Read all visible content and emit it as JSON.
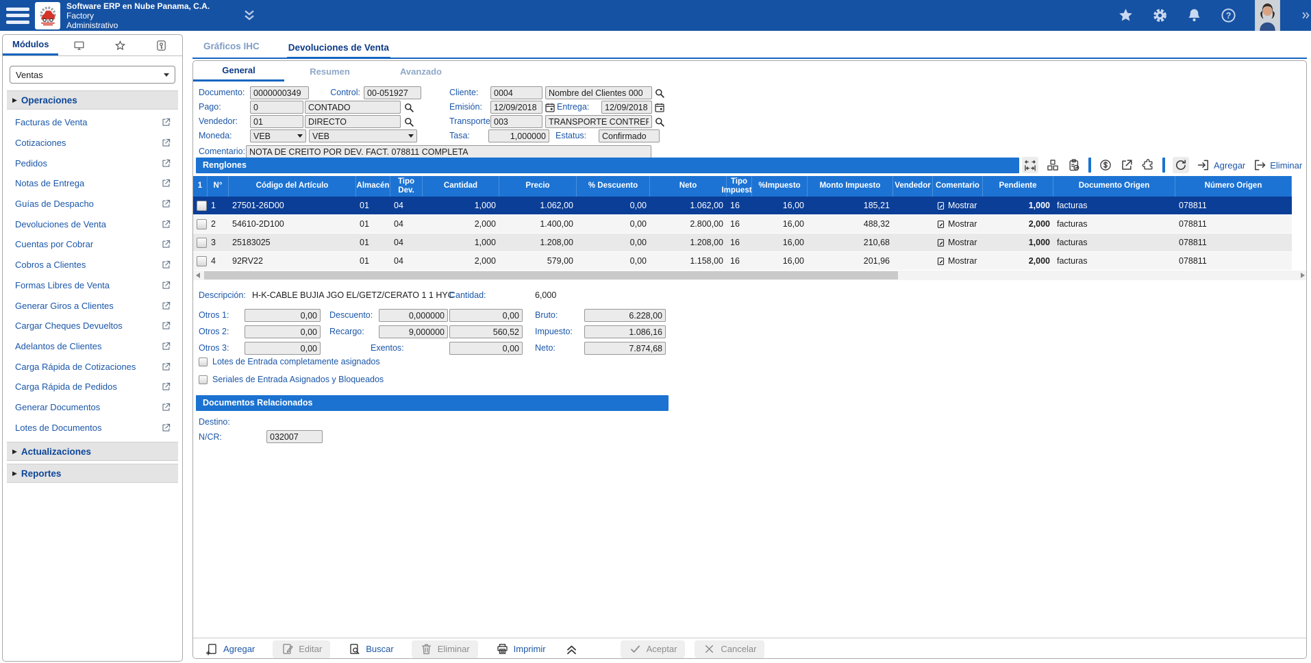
{
  "header": {
    "app_title": "Software ERP en Nube Panama, C.A.",
    "app_line2": "Factory",
    "app_line3": "Administrativo"
  },
  "sidebar": {
    "active_tab": "Módulos",
    "module_selector": "Ventas",
    "section_operaciones": "Operaciones",
    "items": [
      "Facturas de Venta",
      "Cotizaciones",
      "Pedidos",
      "Notas de Entrega",
      "Guías de Despacho",
      "Devoluciones de Venta",
      "Cuentas por Cobrar",
      "Cobros a Clientes",
      "Formas Libres de Venta",
      "Generar Giros a Clientes",
      "Cargar Cheques Devueltos",
      "Adelantos de Clientes",
      "Carga Rápida de Cotizaciones",
      "Carga Rápida de Pedidos",
      "Generar Documentos",
      "Lotes de Documentos"
    ],
    "section_actualizaciones": "Actualizaciones",
    "section_reportes": "Reportes"
  },
  "main": {
    "tabs": {
      "inactive": "Gráficos IHC",
      "active": "Devoluciones de Venta"
    },
    "subtabs": {
      "general": "General",
      "resumen": "Resumen",
      "avanzado": "Avanzado"
    },
    "form": {
      "documento": {
        "label": "Documento:",
        "value": "0000000349"
      },
      "control": {
        "label": "Control:",
        "value": "00-051927"
      },
      "cliente": {
        "label": "Cliente:",
        "code": "0004",
        "name": "Nombre del Clientes 000"
      },
      "pago": {
        "label": "Pago:",
        "code": "0",
        "name": "CONTADO"
      },
      "emision": {
        "label": "Emisión:",
        "value": "12/09/2018"
      },
      "entrega": {
        "label": "Entrega:",
        "value": "12/09/2018"
      },
      "vendedor": {
        "label": "Vendedor:",
        "code": "01",
        "name": "DIRECTO"
      },
      "transporte": {
        "label": "Transporte:",
        "code": "003",
        "name": "TRANSPORTE CONTRERA"
      },
      "moneda": {
        "label": "Moneda:",
        "value1": "VEB",
        "value2": "VEB"
      },
      "tasa": {
        "label": "Tasa:",
        "value": "1,000000"
      },
      "estatus": {
        "label": "Estatus:",
        "value": "Confirmado"
      },
      "comentario": {
        "label": "Comentario:",
        "value": "NOTA DE CREITO POR DEV. FACT. 078811 COMPLETA"
      }
    },
    "renglones": {
      "title": "Renglones",
      "tools": [
        "fit-columns",
        "lots",
        "clipboard-check",
        "sep",
        "currency",
        "open-window",
        "plugin",
        "sep",
        "refresh"
      ],
      "agregar": "Agregar",
      "eliminar": "Eliminar"
    },
    "table": {
      "columns": [
        "1",
        "N°",
        "Código del Artículo",
        "Almacén",
        "Tipo Dev.",
        "Cantidad",
        "Precio",
        "% Descuento",
        "Neto",
        "Tipo Impuesto",
        "%Impuesto",
        "Monto Impuesto",
        "Vendedor",
        "Comentario",
        "Pendiente",
        "Documento Origen",
        "Número Origen"
      ],
      "rows": [
        {
          "selected": true,
          "n": "1",
          "codigo": "27501-26D00",
          "almacen": "01",
          "tipo_dev": "04",
          "cantidad": "1,000",
          "precio": "1.062,00",
          "descuento": "0,00",
          "neto": "1.062,00",
          "tipo_impuesto": "16",
          "pct_impuesto": "16,00",
          "monto_impuesto": "185,21",
          "vendedor": "",
          "comentario": "Mostrar",
          "pendiente": "1,000",
          "doc_origen": "facturas",
          "num_origen": "078811"
        },
        {
          "selected": false,
          "n": "2",
          "codigo": "54610-2D100",
          "almacen": "01",
          "tipo_dev": "04",
          "cantidad": "2,000",
          "precio": "1.400,00",
          "descuento": "0,00",
          "neto": "2.800,00",
          "tipo_impuesto": "16",
          "pct_impuesto": "16,00",
          "monto_impuesto": "488,32",
          "vendedor": "",
          "comentario": "Mostrar",
          "pendiente": "2,000",
          "doc_origen": "facturas",
          "num_origen": "078811"
        },
        {
          "selected": false,
          "n": "3",
          "codigo": "25183025",
          "almacen": "01",
          "tipo_dev": "04",
          "cantidad": "1,000",
          "precio": "1.208,00",
          "descuento": "0,00",
          "neto": "1.208,00",
          "tipo_impuesto": "16",
          "pct_impuesto": "16,00",
          "monto_impuesto": "210,68",
          "vendedor": "",
          "comentario": "Mostrar",
          "pendiente": "1,000",
          "doc_origen": "facturas",
          "num_origen": "078811"
        },
        {
          "selected": false,
          "n": "4",
          "codigo": "92RV22",
          "almacen": "01",
          "tipo_dev": "04",
          "cantidad": "2,000",
          "precio": "579,00",
          "descuento": "0,00",
          "neto": "1.158,00",
          "tipo_impuesto": "16",
          "pct_impuesto": "16,00",
          "monto_impuesto": "201,96",
          "vendedor": "",
          "comentario": "Mostrar",
          "pendiente": "2,000",
          "doc_origen": "facturas",
          "num_origen": "078811"
        }
      ]
    },
    "detail": {
      "descripcion_label": "Descripción:",
      "descripcion": "H-K-CABLE BUJIA JGO EL/GETZ/CERATO 1 1 HYC",
      "cantidad_label": "Cantidad:",
      "cantidad": "6,000",
      "rows": [
        {
          "label1": "Otros 1:",
          "value1": "0,00",
          "label2": "Descuento:",
          "pct": "0,000000",
          "amount": "0,00",
          "label3": "Bruto:",
          "total": "6.228,00"
        },
        {
          "label1": "Otros 2:",
          "value1": "0,00",
          "label2": "Recargo:",
          "pct": "9,000000",
          "amount": "560,52",
          "label3": "Impuesto:",
          "total": "1.086,16"
        },
        {
          "label1": "Otros 3:",
          "value1": "0,00",
          "label2": "Exentos:",
          "amount": "0,00",
          "label3": "Neto:",
          "total": "7.874,68"
        }
      ]
    },
    "checkboxes": {
      "lotes": "Lotes de Entrada completamente asignados",
      "seriales": "Seriales de Entrada Asignados y Bloqueados"
    },
    "related": {
      "title": "Documentos Relacionados",
      "destino_label": "Destino:",
      "ncr_label": "N/CR:",
      "ncr_value": "032007"
    },
    "toolbar": {
      "buttons": [
        {
          "label": "Agregar",
          "icon": "doc-add",
          "enabled": true
        },
        {
          "label": "Editar",
          "icon": "doc-edit",
          "enabled": false
        },
        {
          "label": "Buscar",
          "icon": "doc-search",
          "enabled": true
        },
        {
          "label": "Eliminar",
          "icon": "trash",
          "enabled": false
        },
        {
          "label": "Imprimir",
          "icon": "printer",
          "enabled": true
        },
        {
          "label": "",
          "icon": "chevrons-up",
          "enabled": true
        },
        {
          "label": "Aceptar",
          "icon": "check",
          "enabled": false
        },
        {
          "label": "Cancelar",
          "icon": "close",
          "enabled": false
        }
      ]
    }
  },
  "colors": {
    "header_blue": "#1652a3",
    "accent_blue": "#1565c0",
    "section_blue": "#1b72d0",
    "selected_row_blue": "#0b3e97",
    "link_blue": "#1a56a8"
  }
}
